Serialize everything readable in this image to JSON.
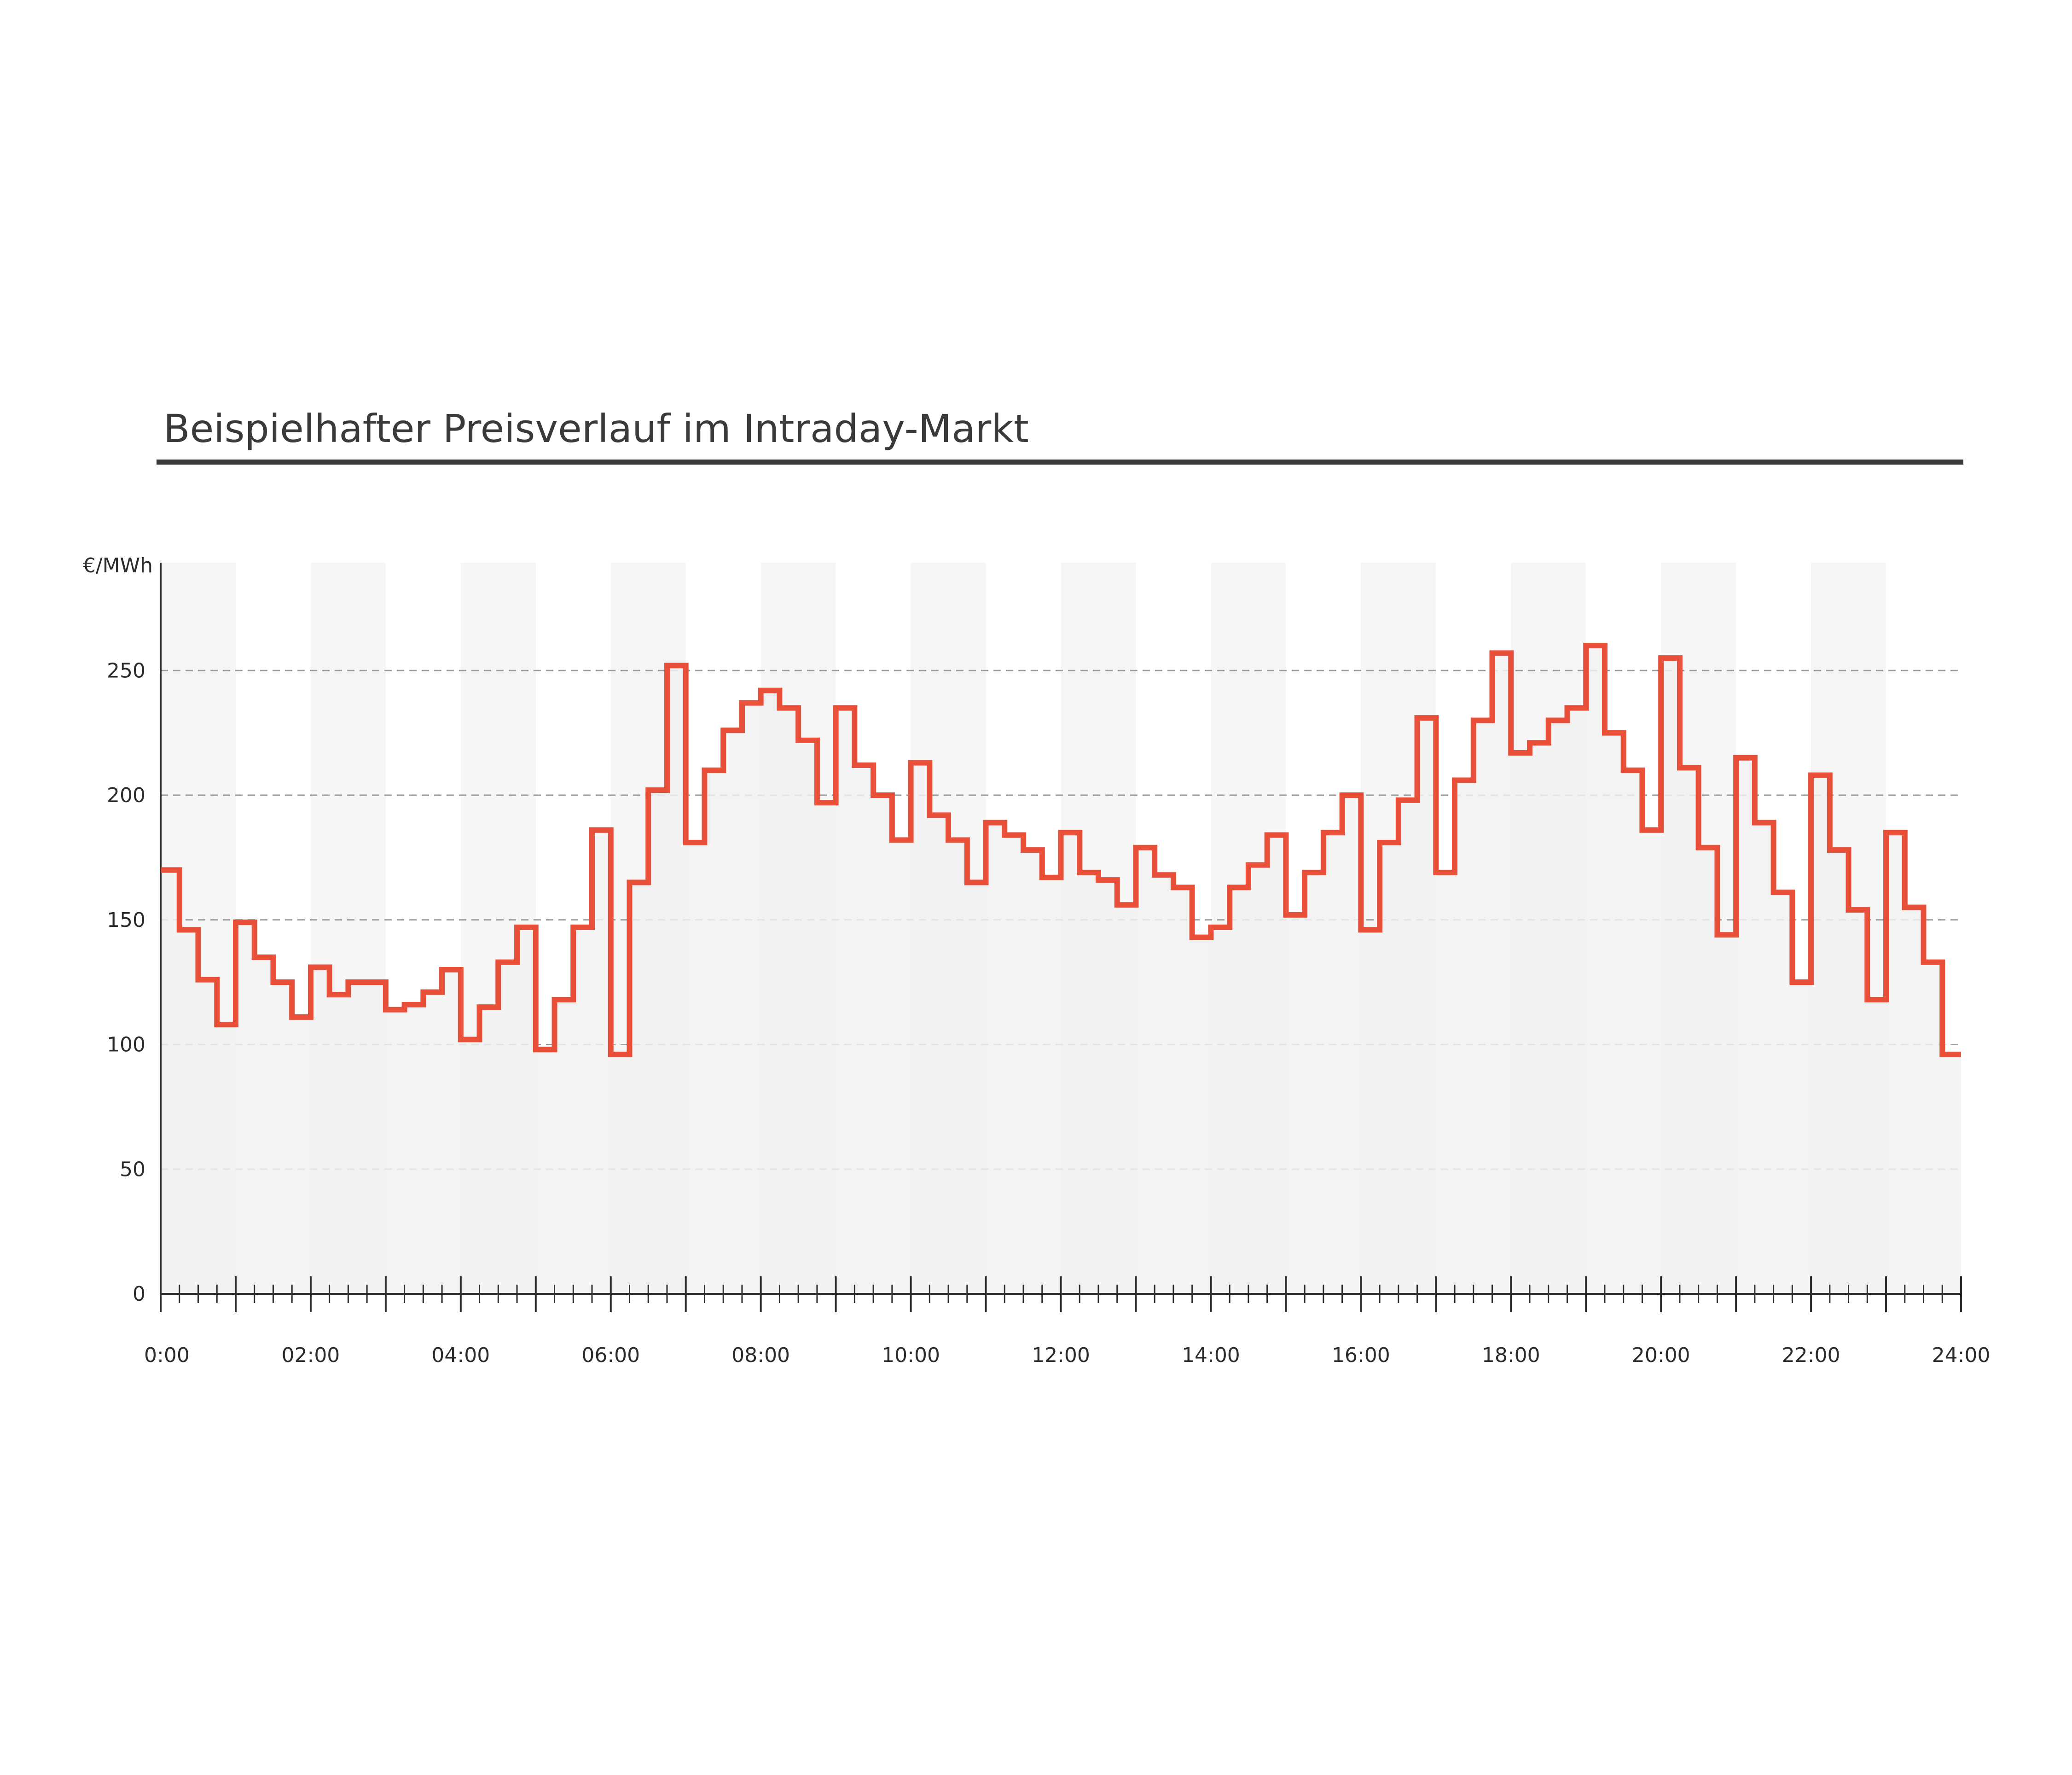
{
  "chart_data": {
    "type": "line",
    "title": "Beispielhafter Preisverlauf im Intraday-Markt",
    "ylabel": "€/MWh",
    "xlabel": "",
    "x_ticks": [
      "0:00",
      "02:00",
      "04:00",
      "06:00",
      "08:00",
      "10:00",
      "12:00",
      "14:00",
      "16:00",
      "18:00",
      "20:00",
      "22:00",
      "24:00"
    ],
    "y_ticks": [
      0,
      50,
      100,
      150,
      200,
      250
    ],
    "ylim": [
      0,
      290
    ],
    "xlim_hours": [
      0,
      24
    ],
    "resolution": "15min",
    "grid": "horizontal dashed",
    "colors": {
      "line": "#e8503a",
      "area": "#f1f1f1",
      "band": "#f6f6f6",
      "grid": "#9a9a9a",
      "axis": "#2c2c2c",
      "title": "#3a3a3a",
      "title_rule": "#3a3a3a"
    },
    "series": [
      {
        "values": [
          170,
          146,
          126,
          108,
          149,
          135,
          125,
          111,
          131,
          120,
          125,
          125,
          114,
          116,
          121,
          130,
          102,
          115,
          133,
          147,
          98,
          118,
          147,
          186,
          96,
          165,
          202,
          252,
          181,
          210,
          226,
          237,
          242,
          235,
          222,
          197,
          235,
          212,
          200,
          182,
          213,
          192,
          182,
          165,
          189,
          184,
          178,
          167,
          185,
          169,
          166,
          156,
          179,
          168,
          163,
          143,
          147,
          163,
          172,
          184,
          152,
          169,
          185,
          200,
          146,
          181,
          198,
          231,
          169,
          206,
          230,
          257,
          217,
          221,
          230,
          235,
          260,
          225,
          210,
          186,
          255,
          211,
          179,
          144,
          215,
          189,
          161,
          125,
          208,
          178,
          154,
          118,
          185,
          155,
          133,
          96
        ]
      }
    ]
  }
}
